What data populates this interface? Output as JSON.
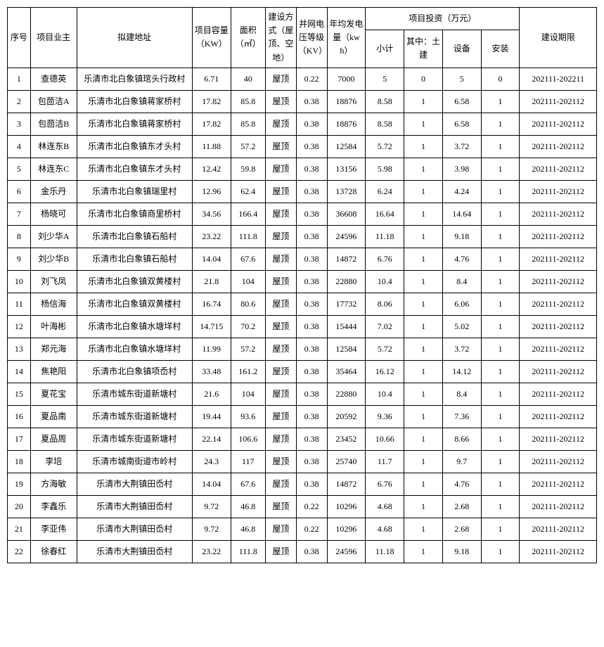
{
  "table": {
    "headers": {
      "seq": "序号",
      "owner": "项目业主",
      "addr": "拟建地址",
      "capacity": "项目容量（KW）",
      "area": "面积（㎡）",
      "buildType": "建设方式（屋顶、空地）",
      "voltage": "并网电压等级（KV）",
      "annual": "年均发电量（kwh）",
      "investGroup": "项目投资（万元）",
      "subtotal": "小计",
      "civil": "其中：土建",
      "equip": "设备",
      "install": "安装",
      "period": "建设期限"
    },
    "rows": [
      {
        "seq": "1",
        "owner": "查德英",
        "addr": "乐清市北白象镇琯头行政村",
        "cap": "6.71",
        "area": "40",
        "build": "屋顶",
        "volt": "0.22",
        "annual": "7000",
        "sub": "5",
        "civil": "0",
        "equip": "5",
        "install": "0",
        "period": "202111-202211"
      },
      {
        "seq": "2",
        "owner": "包茴洁A",
        "addr": "乐清市北白象镇蒋家桥村",
        "cap": "17.82",
        "area": "85.8",
        "build": "屋顶",
        "volt": "0.38",
        "annual": "18876",
        "sub": "8.58",
        "civil": "1",
        "equip": "6.58",
        "install": "1",
        "period": "202111-202112"
      },
      {
        "seq": "3",
        "owner": "包茴洁B",
        "addr": "乐清市北白象镇蒋家桥村",
        "cap": "17.82",
        "area": "85.8",
        "build": "屋顶",
        "volt": "0.38",
        "annual": "18876",
        "sub": "8.58",
        "civil": "1",
        "equip": "6.58",
        "install": "1",
        "period": "202111-202112"
      },
      {
        "seq": "4",
        "owner": "林连东B",
        "addr": "乐清市北白象镇东才头村",
        "cap": "11.88",
        "area": "57.2",
        "build": "屋顶",
        "volt": "0.38",
        "annual": "12584",
        "sub": "5.72",
        "civil": "1",
        "equip": "3.72",
        "install": "1",
        "period": "202111-202112"
      },
      {
        "seq": "5",
        "owner": "林连东C",
        "addr": "乐清市北白象镇东才头村",
        "cap": "12.42",
        "area": "59.8",
        "build": "屋顶",
        "volt": "0.38",
        "annual": "13156",
        "sub": "5.98",
        "civil": "1",
        "equip": "3.98",
        "install": "1",
        "period": "202111-202112"
      },
      {
        "seq": "6",
        "owner": "金乐丹",
        "addr": "乐清市北白象镇瑞里村",
        "cap": "12.96",
        "area": "62.4",
        "build": "屋顶",
        "volt": "0.38",
        "annual": "13728",
        "sub": "6.24",
        "civil": "1",
        "equip": "4.24",
        "install": "1",
        "period": "202111-202112"
      },
      {
        "seq": "7",
        "owner": "杨晓可",
        "addr": "乐清市北白象镇商里桥村",
        "cap": "34.56",
        "area": "166.4",
        "build": "屋顶",
        "volt": "0.38",
        "annual": "36608",
        "sub": "16.64",
        "civil": "1",
        "equip": "14.64",
        "install": "1",
        "period": "202111-202112"
      },
      {
        "seq": "8",
        "owner": "刘少华A",
        "addr": "乐清市北白象镇石船村",
        "cap": "23.22",
        "area": "111.8",
        "build": "屋顶",
        "volt": "0.38",
        "annual": "24596",
        "sub": "11.18",
        "civil": "1",
        "equip": "9.18",
        "install": "1",
        "period": "202111-202112"
      },
      {
        "seq": "9",
        "owner": "刘少华B",
        "addr": "乐清市北白象镇石船村",
        "cap": "14.04",
        "area": "67.6",
        "build": "屋顶",
        "volt": "0.38",
        "annual": "14872",
        "sub": "6.76",
        "civil": "1",
        "equip": "4.76",
        "install": "1",
        "period": "202111-202112"
      },
      {
        "seq": "10",
        "owner": "刘飞凤",
        "addr": "乐清市北白象镇双黄楼村",
        "cap": "21.8",
        "area": "104",
        "build": "屋顶",
        "volt": "0.38",
        "annual": "22880",
        "sub": "10.4",
        "civil": "1",
        "equip": "8.4",
        "install": "1",
        "period": "202111-202112"
      },
      {
        "seq": "11",
        "owner": "杨信海",
        "addr": "乐清市北白象镇双黄楼村",
        "cap": "16.74",
        "area": "80.6",
        "build": "屋顶",
        "volt": "0.38",
        "annual": "17732",
        "sub": "8.06",
        "civil": "1",
        "equip": "6.06",
        "install": "1",
        "period": "202111-202112"
      },
      {
        "seq": "12",
        "owner": "叶海彬",
        "addr": "乐清市北白象镇水塘垟村",
        "cap": "14.715",
        "area": "70.2",
        "build": "屋顶",
        "volt": "0.38",
        "annual": "15444",
        "sub": "7.02",
        "civil": "1",
        "equip": "5.02",
        "install": "1",
        "period": "202111-202112"
      },
      {
        "seq": "13",
        "owner": "郑元海",
        "addr": "乐清市北白象镇水塘垟村",
        "cap": "11.99",
        "area": "57.2",
        "build": "屋顶",
        "volt": "0.38",
        "annual": "12584",
        "sub": "5.72",
        "civil": "1",
        "equip": "3.72",
        "install": "1",
        "period": "202111-202112"
      },
      {
        "seq": "14",
        "owner": "焦艳阳",
        "addr": "乐清市北白象镇项岙村",
        "cap": "33.48",
        "area": "161.2",
        "build": "屋顶",
        "volt": "0.38",
        "annual": "35464",
        "sub": "16.12",
        "civil": "1",
        "equip": "14.12",
        "install": "1",
        "period": "202111-202112"
      },
      {
        "seq": "15",
        "owner": "夏花宝",
        "addr": "乐清市城东街道新塘村",
        "cap": "21.6",
        "area": "104",
        "build": "屋顶",
        "volt": "0.38",
        "annual": "22880",
        "sub": "10.4",
        "civil": "1",
        "equip": "8.4",
        "install": "1",
        "period": "202111-202112"
      },
      {
        "seq": "16",
        "owner": "夏品南",
        "addr": "乐清市城东街道新塘村",
        "cap": "19.44",
        "area": "93.6",
        "build": "屋顶",
        "volt": "0.38",
        "annual": "20592",
        "sub": "9.36",
        "civil": "1",
        "equip": "7.36",
        "install": "1",
        "period": "202111-202112"
      },
      {
        "seq": "17",
        "owner": "夏品周",
        "addr": "乐清市城东街道新塘村",
        "cap": "22.14",
        "area": "106.6",
        "build": "屋顶",
        "volt": "0.38",
        "annual": "23452",
        "sub": "10.66",
        "civil": "1",
        "equip": "8.66",
        "install": "1",
        "period": "202111-202112"
      },
      {
        "seq": "18",
        "owner": "李培",
        "addr": "乐清市城南街道市岭村",
        "cap": "24.3",
        "area": "117",
        "build": "屋顶",
        "volt": "0.38",
        "annual": "25740",
        "sub": "11.7",
        "civil": "1",
        "equip": "9.7",
        "install": "1",
        "period": "202111-202112"
      },
      {
        "seq": "19",
        "owner": "方海敏",
        "addr": "乐清市大荆镇田岙村",
        "cap": "14.04",
        "area": "67.6",
        "build": "屋顶",
        "volt": "0.38",
        "annual": "14872",
        "sub": "6.76",
        "civil": "1",
        "equip": "4.76",
        "install": "1",
        "period": "202111-202112"
      },
      {
        "seq": "20",
        "owner": "李鑫乐",
        "addr": "乐清市大荆镇田岙村",
        "cap": "9.72",
        "area": "46.8",
        "build": "屋顶",
        "volt": "0.22",
        "annual": "10296",
        "sub": "4.68",
        "civil": "1",
        "equip": "2.68",
        "install": "1",
        "period": "202111-202112"
      },
      {
        "seq": "21",
        "owner": "李亚伟",
        "addr": "乐清市大荆镇田岙村",
        "cap": "9.72",
        "area": "46.8",
        "build": "屋顶",
        "volt": "0.22",
        "annual": "10296",
        "sub": "4.68",
        "civil": "1",
        "equip": "2.68",
        "install": "1",
        "period": "202111-202112"
      },
      {
        "seq": "22",
        "owner": "徐春红",
        "addr": "乐清市大荆镇田岙村",
        "cap": "23.22",
        "area": "111.8",
        "build": "屋顶",
        "volt": "0.38",
        "annual": "24596",
        "sub": "11.18",
        "civil": "1",
        "equip": "9.18",
        "install": "1",
        "period": "202111-202112"
      }
    ],
    "style": {
      "border_color": "#000000",
      "background_color": "#ffffff",
      "text_color": "#000000",
      "font_family": "SimSun",
      "header_fontsize": 12,
      "cell_fontsize": 12
    }
  }
}
